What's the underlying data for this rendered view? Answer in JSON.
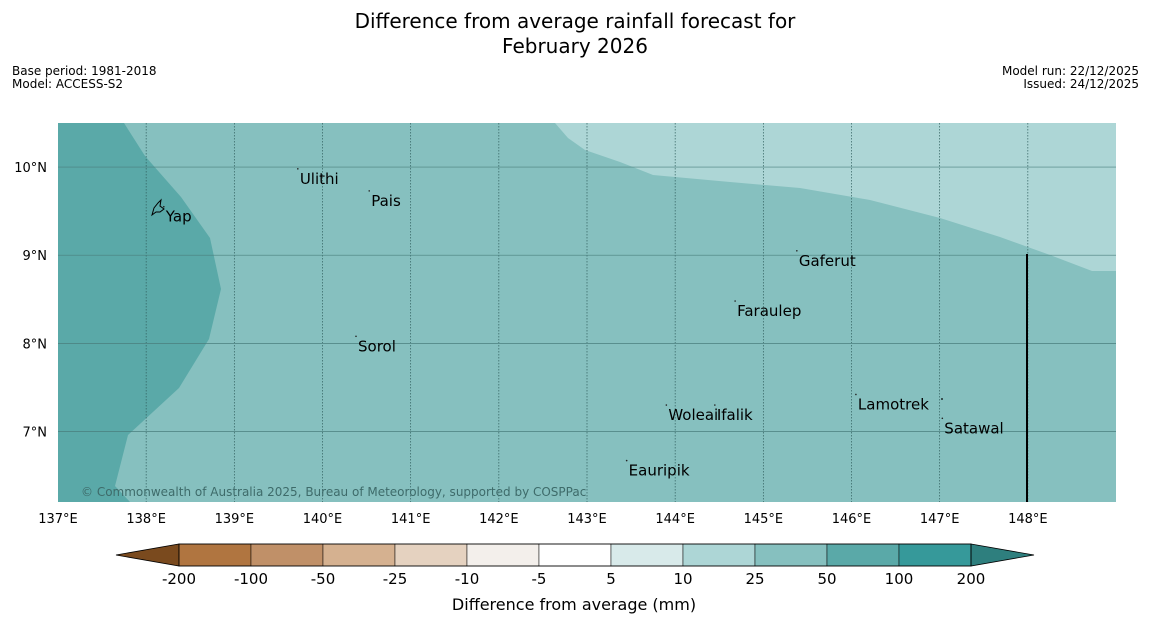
{
  "title": {
    "line1": "Difference from average rainfall forecast for",
    "line2": "February 2026"
  },
  "meta": {
    "base_period": "Base period: 1981-2018",
    "model": "Model: ACCESS-S2",
    "model_run": "Model run: 22/12/2025",
    "issued": "Issued: 24/12/2025"
  },
  "map": {
    "lon_range": [
      137,
      149
    ],
    "lat_range": [
      6.2,
      10.5
    ],
    "longitude_ticks": [
      {
        "value": 137,
        "label": "137°E"
      },
      {
        "value": 138,
        "label": "138°E"
      },
      {
        "value": 139,
        "label": "139°E"
      },
      {
        "value": 140,
        "label": "140°E"
      },
      {
        "value": 141,
        "label": "141°E"
      },
      {
        "value": 142,
        "label": "142°E"
      },
      {
        "value": 143,
        "label": "143°E"
      },
      {
        "value": 144,
        "label": "144°E"
      },
      {
        "value": 145,
        "label": "145°E"
      },
      {
        "value": 146,
        "label": "146°E"
      },
      {
        "value": 147,
        "label": "147°E"
      },
      {
        "value": 148,
        "label": "148°E"
      }
    ],
    "latitude_ticks": [
      {
        "value": 10,
        "label": "10°N"
      },
      {
        "value": 9,
        "label": "9°N"
      },
      {
        "value": 8,
        "label": "8°N"
      },
      {
        "value": 7,
        "label": "7°N"
      }
    ],
    "places": [
      {
        "name": "Yap",
        "lon": 138.2,
        "lat": 9.55
      },
      {
        "name": "Ulithi",
        "lon": 139.72,
        "lat": 9.98
      },
      {
        "name": "Pais",
        "lon": 140.53,
        "lat": 9.73
      },
      {
        "name": "Gaferut",
        "lon": 145.38,
        "lat": 9.05
      },
      {
        "name": "Faraulep",
        "lon": 144.68,
        "lat": 8.48
      },
      {
        "name": "Sorol",
        "lon": 140.38,
        "lat": 8.08
      },
      {
        "name": "Lamotrek",
        "lon": 146.05,
        "lat": 7.42
      },
      {
        "name": "Woleai",
        "lon": 143.9,
        "lat": 7.3
      },
      {
        "name": "Ifalik",
        "lon": 144.45,
        "lat": 7.3
      },
      {
        "name": "Satawal",
        "lon": 147.03,
        "lat": 7.15
      },
      {
        "name": "Eauripik",
        "lon": 143.45,
        "lat": 6.67
      }
    ],
    "copyright": "© Commonwealth of Australia 2025, Bureau of Meteorology, supported by COSPPac"
  },
  "legend": {
    "label": "Difference from average (mm)",
    "tick_labels": [
      "-200",
      "-100",
      "-50",
      "-25",
      "-10",
      "-5",
      "5",
      "10",
      "25",
      "50",
      "100",
      "200"
    ],
    "colors": {
      "below_min": "#7a4a1e",
      "bins": [
        "#b07540",
        "#c09068",
        "#d5b190",
        "#e5d2c0",
        "#f3efeb",
        "#ffffff",
        "#d8eaea",
        "#add6d6",
        "#86c0bf",
        "#5aa9a8",
        "#36999a"
      ],
      "above_max": "#2e7f7e"
    }
  },
  "colors": {
    "zone_50_100": "#5aa9a8",
    "zone_25_50": "#86c0bf",
    "zone_10_25": "#add6d6"
  }
}
